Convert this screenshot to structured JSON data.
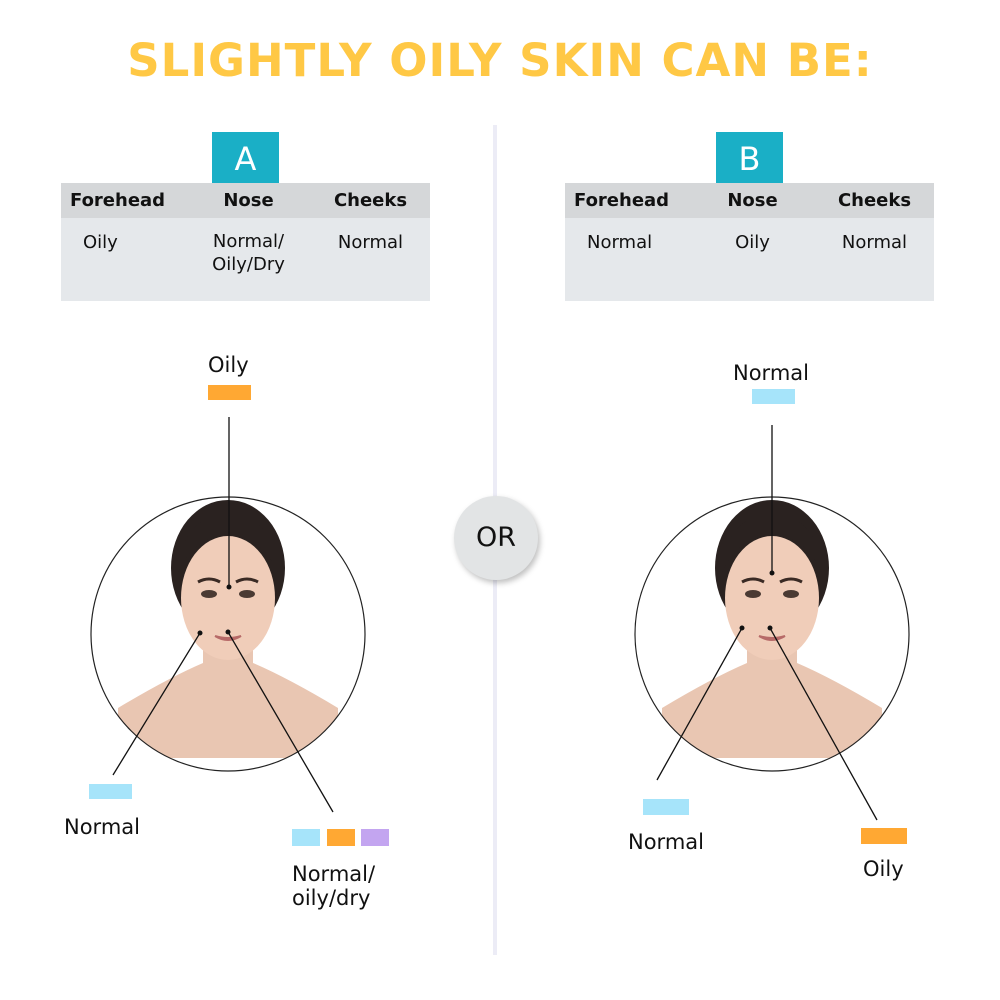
{
  "title": "SLIGHTLY OILY SKIN CAN BE:",
  "colors": {
    "title": "#FFC845",
    "badge": "#1AAFC6",
    "oily": "#FFA833",
    "normal": "#A6E4FA",
    "dry": "#C3A5F0"
  },
  "or_label": "OR",
  "panels": [
    {
      "badge": "A",
      "headers": [
        "Forehead",
        "Nose",
        "Cheeks"
      ],
      "values": [
        "Oily",
        "Normal/\nOily/Dry",
        "Normal"
      ],
      "labels": {
        "forehead": "Oily",
        "cheek": "Normal",
        "nose": "Normal/\noily/dry"
      }
    },
    {
      "badge": "B",
      "headers": [
        "Forehead",
        "Nose",
        "Cheeks"
      ],
      "values": [
        "Normal",
        "Oily",
        "Normal"
      ],
      "labels": {
        "forehead": "Normal",
        "cheek": "Normal",
        "nose": "Oily"
      }
    }
  ]
}
